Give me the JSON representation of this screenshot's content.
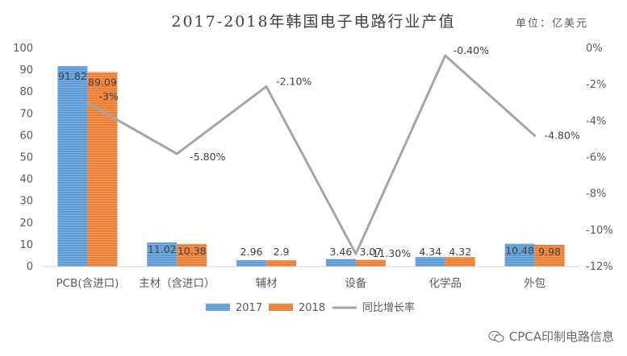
{
  "title": "2017-2018年韩国电子电路行业产值",
  "unit_label": "单位：亿美元",
  "watermark": "CPCA印制电路信息",
  "colors": {
    "bar2017": "#5b9bd5",
    "bar2018": "#ed7d31",
    "line": "#a5a5a5",
    "axis": "#595959",
    "grid": "#d9d9d9"
  },
  "chart_data": {
    "type": "bar",
    "title": "2017-2018年韩国电子电路行业产值",
    "categories": [
      "PCB(含进口)",
      "主材（含进口）",
      "辅材",
      "设备",
      "化学品",
      "外包"
    ],
    "series": [
      {
        "name": "2017",
        "values": [
          91.82,
          11.02,
          2.96,
          3.46,
          4.34,
          10.48
        ]
      },
      {
        "name": "2018",
        "values": [
          89.09,
          10.38,
          2.9,
          3.07,
          4.32,
          9.98
        ]
      }
    ],
    "line_series": {
      "name": "同比增长率",
      "values": [
        -3,
        -5.8,
        -2.1,
        -11.3,
        -0.4,
        -4.8
      ],
      "labels": [
        "-3%",
        "-5.80%",
        "-2.10%",
        "-11.30%",
        "-0.40%",
        "-4.80%"
      ]
    },
    "bar_labels": [
      [
        "91.82",
        "11.02",
        "2.96",
        "3.46",
        "4.34",
        "10.48"
      ],
      [
        "89.09",
        "10.38",
        "2.9",
        "3.07",
        "4.32",
        "9.98"
      ]
    ],
    "left_axis": {
      "ylim": [
        0,
        100
      ],
      "ticks": [
        "0",
        "10",
        "20",
        "30",
        "40",
        "50",
        "60",
        "70",
        "80",
        "90",
        "100"
      ]
    },
    "right_axis": {
      "ylim": [
        -12,
        0
      ],
      "ticks": [
        "-12%",
        "-10%",
        "-8%",
        "-6%",
        "-4%",
        "-2%",
        "0%"
      ]
    },
    "legend": {
      "placement": "bottom",
      "items": [
        "2017",
        "2018",
        "同比增长率"
      ]
    }
  }
}
